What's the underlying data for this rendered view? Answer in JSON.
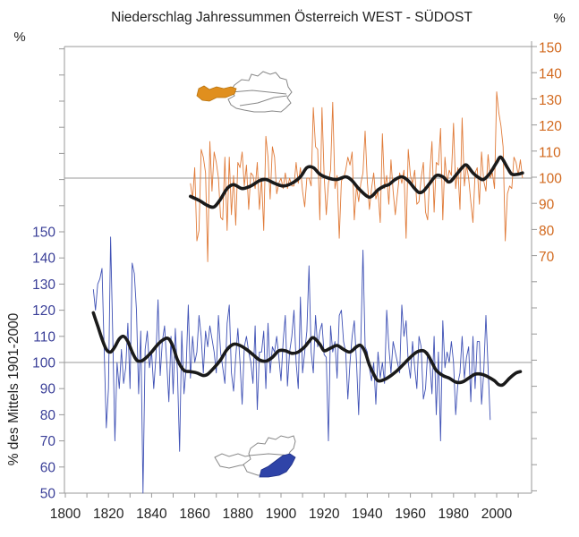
{
  "chart_data": [
    {
      "id": "west",
      "type": "line",
      "title": "Niederschlag Jahressummen Österreich WEST - SÜDOST",
      "region": "WEST",
      "axis": "right",
      "unit_label": "%",
      "yticks": [
        70,
        80,
        90,
        100,
        110,
        120,
        130,
        140,
        150
      ],
      "ylim": [
        50,
        150
      ],
      "color": "#e07b39",
      "smooth_color": "#1a1a1a",
      "x_start": 1858,
      "annual": [
        98,
        92,
        104,
        76,
        80,
        111,
        108,
        102,
        68,
        114,
        95,
        110,
        106,
        100,
        85,
        84,
        108,
        80,
        108,
        86,
        101,
        82,
        106,
        104,
        110,
        97,
        105,
        88,
        102,
        101,
        96,
        106,
        88,
        100,
        80,
        116,
        108,
        92,
        112,
        108,
        94,
        98,
        100,
        96,
        102,
        96,
        100,
        97,
        97,
        106,
        98,
        104,
        95,
        89,
        100,
        100,
        97,
        127,
        112,
        111,
        84,
        127,
        101,
        86,
        98,
        103,
        129,
        96,
        101,
        77,
        99,
        100,
        103,
        108,
        105,
        110,
        84,
        97,
        91,
        98,
        102,
        118,
        99,
        88,
        96,
        102,
        92,
        95,
        83,
        117,
        96,
        101,
        90,
        107,
        95,
        86,
        94,
        102,
        98,
        103,
        77,
        111,
        101,
        98,
        103,
        90,
        91,
        100,
        106,
        87,
        84,
        102,
        114,
        87,
        106,
        105,
        119,
        84,
        108,
        98,
        103,
        101,
        121,
        96,
        104,
        88,
        123,
        97,
        105,
        100,
        91,
        83,
        102,
        104,
        90,
        110,
        99,
        95,
        109,
        100,
        102,
        96,
        133,
        125,
        120,
        112,
        76,
        94,
        97,
        96,
        108,
        106,
        101,
        107,
        100
      ],
      "smoothed": [
        [
          1858,
          93
        ],
        [
          1862,
          91.5
        ],
        [
          1866,
          89.5
        ],
        [
          1869,
          89
        ],
        [
          1872,
          92
        ],
        [
          1875,
          96
        ],
        [
          1878,
          97.5
        ],
        [
          1882,
          96
        ],
        [
          1886,
          97
        ],
        [
          1890,
          99
        ],
        [
          1893,
          99.5
        ],
        [
          1897,
          98
        ],
        [
          1901,
          97
        ],
        [
          1905,
          98
        ],
        [
          1909,
          100.5
        ],
        [
          1912,
          104
        ],
        [
          1915,
          104
        ],
        [
          1918,
          101.5
        ],
        [
          1922,
          100
        ],
        [
          1926,
          99.5
        ],
        [
          1930,
          100.5
        ],
        [
          1933,
          99
        ],
        [
          1936,
          96
        ],
        [
          1940,
          93
        ],
        [
          1942,
          93
        ],
        [
          1945,
          95.5
        ],
        [
          1948,
          97
        ],
        [
          1950,
          97.5
        ],
        [
          1953,
          99.5
        ],
        [
          1956,
          100.5
        ],
        [
          1959,
          99
        ],
        [
          1962,
          96
        ],
        [
          1964,
          94.5
        ],
        [
          1966,
          95
        ],
        [
          1969,
          98
        ],
        [
          1972,
          101
        ],
        [
          1975,
          100.5
        ],
        [
          1978,
          98.5
        ],
        [
          1981,
          101
        ],
        [
          1984,
          104
        ],
        [
          1986,
          105
        ],
        [
          1989,
          102
        ],
        [
          1992,
          100
        ],
        [
          1994,
          99.5
        ],
        [
          1997,
          102
        ],
        [
          2000,
          106
        ],
        [
          2002,
          108
        ],
        [
          2005,
          104
        ],
        [
          2007,
          101.5
        ],
        [
          2010,
          101.5
        ],
        [
          2012,
          102
        ]
      ]
    },
    {
      "id": "suedost",
      "type": "line",
      "region": "SÜDOST",
      "axis": "left",
      "unit_label": "%",
      "ylabel": "% des Mittels 1901-2000",
      "yticks": [
        50,
        60,
        70,
        80,
        90,
        100,
        110,
        120,
        130,
        140,
        150
      ],
      "ylim": [
        50,
        150
      ],
      "color": "#3f51b5",
      "smooth_color": "#1a1a1a",
      "x_start": 1813,
      "annual": [
        128,
        120,
        130,
        132,
        136,
        105,
        75,
        90,
        148,
        110,
        70,
        100,
        90,
        105,
        92,
        98,
        115,
        90,
        138,
        134,
        120,
        88,
        112,
        50,
        105,
        112,
        98,
        104,
        90,
        102,
        124,
        95,
        108,
        114,
        100,
        85,
        110,
        88,
        113,
        96,
        66,
        112,
        88,
        98,
        122,
        94,
        110,
        100,
        104,
        118,
        110,
        96,
        112,
        106,
        114,
        109,
        104,
        96,
        118,
        104,
        98,
        92,
        115,
        122,
        96,
        89,
        102,
        113,
        100,
        84,
        106,
        110,
        104,
        100,
        92,
        114,
        82,
        104,
        104,
        112,
        90,
        115,
        96,
        106,
        104,
        110,
        102,
        93,
        108,
        118,
        91,
        104,
        110,
        120,
        100,
        90,
        125,
        96,
        104,
        112,
        137,
        104,
        96,
        118,
        106,
        112,
        115,
        103,
        102,
        70,
        114,
        104,
        108,
        94,
        118,
        120,
        108,
        104,
        86,
        100,
        110,
        116,
        100,
        80,
        108,
        143,
        106,
        104,
        98,
        93,
        100,
        84,
        104,
        94,
        100,
        92,
        120,
        106,
        96,
        108,
        104,
        100,
        96,
        122,
        110,
        116,
        100,
        94,
        108,
        98,
        90,
        110,
        106,
        86,
        90,
        104,
        100,
        88,
        110,
        80,
        104,
        70,
        116,
        98,
        104,
        100,
        108,
        100,
        80,
        92,
        96,
        110,
        94,
        102,
        106,
        85,
        110,
        90,
        108,
        108,
        84,
        96,
        118,
        98,
        78
      ],
      "smoothed": [
        [
          1813,
          119
        ],
        [
          1815,
          114
        ],
        [
          1817,
          109
        ],
        [
          1819,
          105
        ],
        [
          1821,
          104
        ],
        [
          1823,
          106
        ],
        [
          1825,
          109
        ],
        [
          1827,
          110
        ],
        [
          1829,
          108
        ],
        [
          1831,
          104
        ],
        [
          1833,
          101
        ],
        [
          1835,
          100.5
        ],
        [
          1837,
          101.5
        ],
        [
          1840,
          104
        ],
        [
          1843,
          107
        ],
        [
          1846,
          109
        ],
        [
          1848,
          109
        ],
        [
          1850,
          106
        ],
        [
          1852,
          101
        ],
        [
          1855,
          97
        ],
        [
          1858,
          96.5
        ],
        [
          1861,
          96
        ],
        [
          1864,
          95
        ],
        [
          1866,
          95.5
        ],
        [
          1869,
          98
        ],
        [
          1872,
          101
        ],
        [
          1875,
          105
        ],
        [
          1878,
          107
        ],
        [
          1881,
          106.5
        ],
        [
          1884,
          105
        ],
        [
          1887,
          103
        ],
        [
          1890,
          101
        ],
        [
          1893,
          100.5
        ],
        [
          1896,
          102
        ],
        [
          1899,
          104.5
        ],
        [
          1902,
          104.5
        ],
        [
          1905,
          103.5
        ],
        [
          1908,
          104
        ],
        [
          1911,
          106
        ],
        [
          1913,
          108
        ],
        [
          1915,
          109.5
        ],
        [
          1918,
          107
        ],
        [
          1920,
          104.5
        ],
        [
          1923,
          105.5
        ],
        [
          1926,
          106.5
        ],
        [
          1929,
          105
        ],
        [
          1932,
          104
        ],
        [
          1935,
          106
        ],
        [
          1937,
          106.5
        ],
        [
          1939,
          104
        ],
        [
          1941,
          99
        ],
        [
          1943,
          95.5
        ],
        [
          1945,
          93
        ],
        [
          1948,
          93.5
        ],
        [
          1951,
          95
        ],
        [
          1954,
          97
        ],
        [
          1957,
          99.5
        ],
        [
          1960,
          102
        ],
        [
          1963,
          104
        ],
        [
          1966,
          104.5
        ],
        [
          1968,
          103
        ],
        [
          1970,
          100
        ],
        [
          1972,
          97
        ],
        [
          1975,
          95
        ],
        [
          1978,
          94
        ],
        [
          1981,
          92.5
        ],
        [
          1984,
          92.5
        ],
        [
          1987,
          94
        ],
        [
          1990,
          95.5
        ],
        [
          1993,
          95.5
        ],
        [
          1996,
          94.5
        ],
        [
          1999,
          93
        ],
        [
          2001,
          91.5
        ],
        [
          2003,
          91.5
        ],
        [
          2006,
          94
        ],
        [
          2009,
          96
        ],
        [
          2011,
          96.5
        ]
      ]
    }
  ],
  "texts": {
    "title": "Niederschlag Jahressummen Österreich WEST - SÜDOST",
    "left_unit": "%",
    "right_unit": "%",
    "ylabel": "% des Mittels 1901-2000"
  },
  "x_axis": {
    "ticks": [
      1800,
      1820,
      1840,
      1860,
      1880,
      1900,
      1920,
      1940,
      1960,
      1980,
      2000
    ],
    "labels": [
      "1800",
      "1820",
      "1840",
      "1860",
      "1880",
      "1900",
      "1920",
      "1940",
      "1960",
      "1980",
      "2000"
    ],
    "minor_step": 10,
    "range": [
      1800,
      2017
    ]
  },
  "reference_lines": [
    {
      "axis": "right",
      "value": 100
    },
    {
      "axis": "left",
      "value": 100
    }
  ],
  "maps": [
    {
      "name": "austria-map-west-highlighted",
      "highlight": "WEST",
      "highlight_color": "#e08f1e"
    },
    {
      "name": "austria-map-suedost-highlighted",
      "highlight": "SÜDOST",
      "highlight_color": "#2f44a8"
    }
  ],
  "colors": {
    "left_axis_text": "#3a3f98",
    "right_axis_text": "#d2691e",
    "axis": "#999999"
  }
}
